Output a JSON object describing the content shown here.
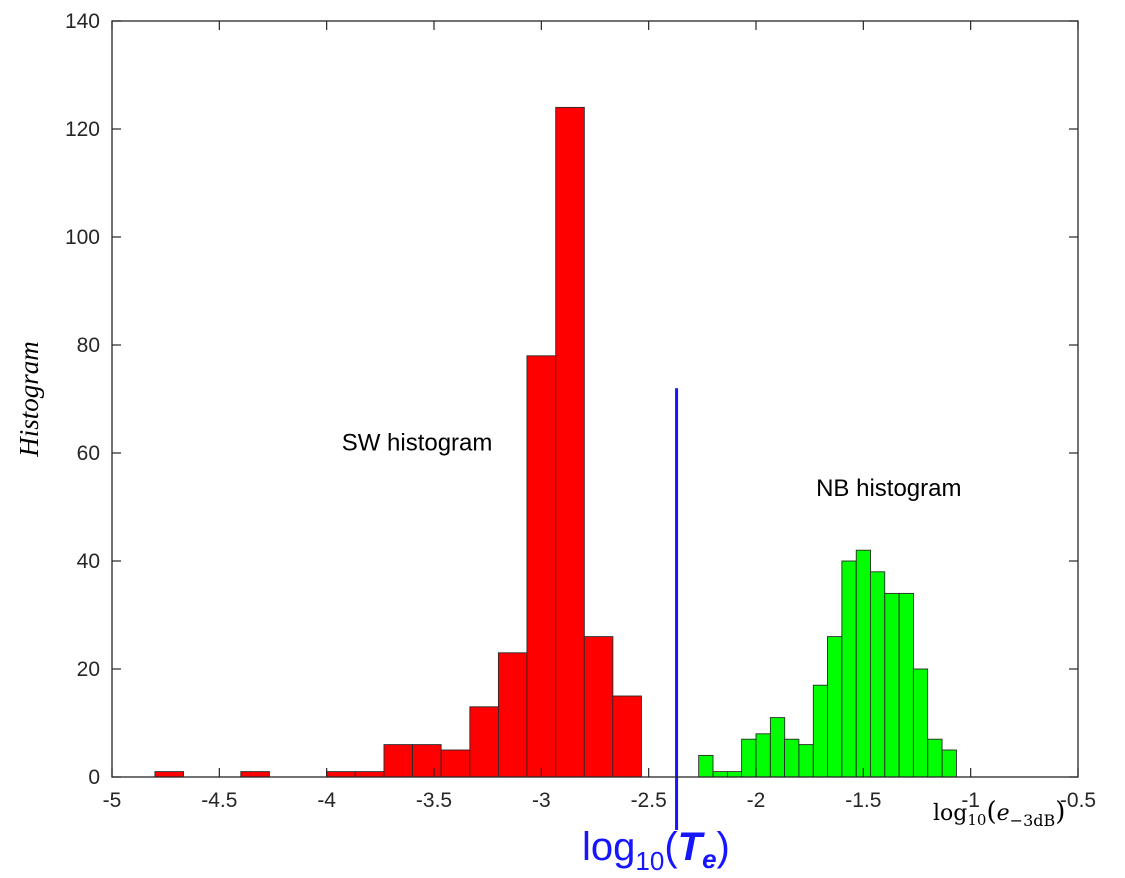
{
  "chart_data": {
    "type": "bar",
    "title": "",
    "ylabel": "Histogram",
    "xlabel": {
      "base": "log",
      "base_sub": "10",
      "open": "(",
      "var": "e",
      "var_sub": "−3dB",
      "close": ")"
    },
    "xlim": [
      -5,
      -0.5
    ],
    "ylim": [
      0,
      140
    ],
    "xticks": [
      -5,
      -4.5,
      -4,
      -3.5,
      -3,
      -2.5,
      -2,
      -1.5,
      -1,
      -0.5
    ],
    "xtick_labels": [
      "-5",
      "-4.5",
      "-4",
      "-3.5",
      "-3",
      "-2.5",
      "-2",
      "-1.5",
      "-1",
      "-0.5"
    ],
    "yticks": [
      0,
      20,
      40,
      60,
      80,
      100,
      120,
      140
    ],
    "ytick_labels": [
      "0",
      "20",
      "40",
      "60",
      "80",
      "100",
      "120",
      "140"
    ],
    "grid": false,
    "series": [
      {
        "name": "SW histogram",
        "color": "#ff0000",
        "bin_width": 0.1333,
        "bin_starts": [
          -4.8,
          -4.667,
          -4.533,
          -4.4,
          -4.267,
          -4.133,
          -4.0,
          -3.867,
          -3.733,
          -3.6,
          -3.467,
          -3.333,
          -3.2,
          -3.067,
          -2.933,
          -2.8,
          -2.667
        ],
        "values": [
          1,
          0,
          0,
          1,
          0,
          0,
          1,
          1,
          6,
          6,
          5,
          13,
          23,
          78,
          124,
          26,
          15
        ]
      },
      {
        "name": "NB histogram",
        "color": "#00ff00",
        "bin_width": 0.0667,
        "bin_starts": [
          -2.267,
          -2.2,
          -2.133,
          -2.067,
          -2.0,
          -1.933,
          -1.867,
          -1.8,
          -1.733,
          -1.667,
          -1.6,
          -1.533,
          -1.467,
          -1.4,
          -1.333,
          -1.267,
          -1.2,
          -1.133,
          -1.067,
          -1.0,
          -0.933
        ],
        "values": [
          4,
          1,
          1,
          7,
          8,
          11,
          7,
          6,
          17,
          26,
          40,
          42,
          38,
          34,
          34,
          20,
          7,
          5,
          0,
          0,
          0
        ]
      }
    ],
    "threshold": {
      "x": -2.37,
      "y_top": 72,
      "color": "#1515ff",
      "label_base": "log",
      "label_sub": "10",
      "label_open": "(",
      "label_var": "T",
      "label_var_sub": "e",
      "label_close": ")"
    },
    "annotations": [
      {
        "text": "SW histogram",
        "x": -3.93,
        "y": 60.5
      },
      {
        "text": "NB histogram",
        "x": -1.72,
        "y": 52
      }
    ]
  }
}
